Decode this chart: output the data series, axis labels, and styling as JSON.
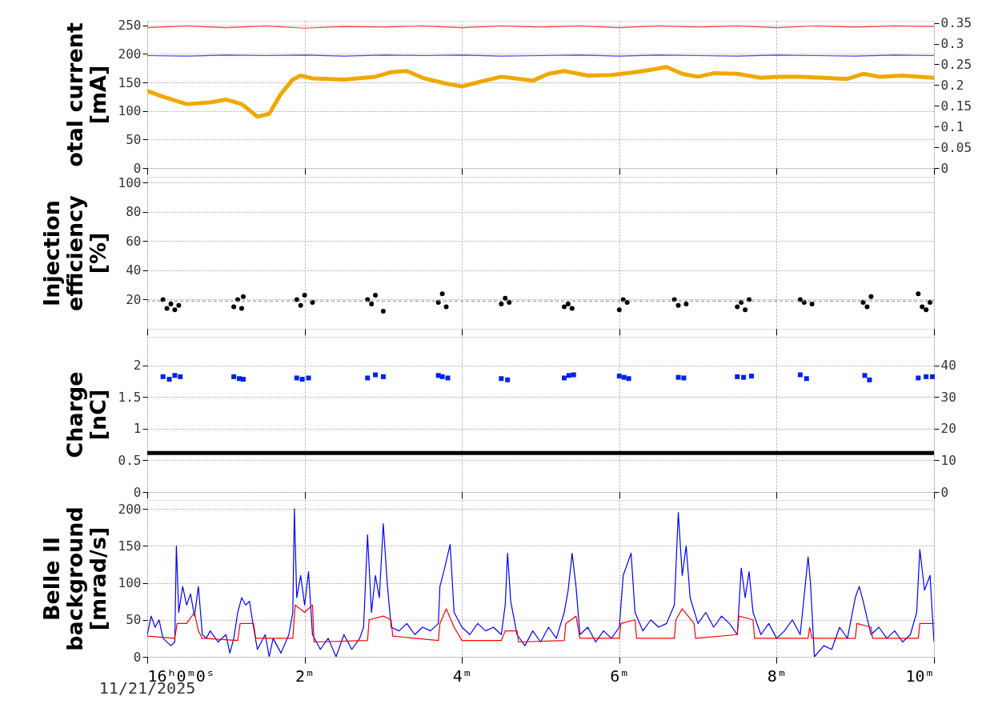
{
  "chart_data": [
    {
      "type": "line",
      "ylabel": "otal current\n[mA]",
      "xlim": [
        0,
        10
      ],
      "xticks": [
        {
          "value": 0,
          "label": null
        },
        {
          "value": 2,
          "label": null
        },
        {
          "value": 4,
          "label": null
        },
        {
          "value": 6,
          "label": null
        },
        {
          "value": 8,
          "label": null
        },
        {
          "value": 10,
          "label": null
        }
      ],
      "ylim": [
        0,
        258
      ],
      "yticks": [
        0,
        50,
        100,
        150,
        200,
        250
      ],
      "y2lim": [
        0,
        0.355
      ],
      "y2ticks": [
        0,
        0.05,
        0.1,
        0.15,
        0.2,
        0.25,
        0.3,
        0.35
      ],
      "grid": true,
      "tick_labels": "y",
      "series": [
        {
          "color": "#f0a800",
          "x": [
            0,
            0.2,
            0.5,
            0.8,
            1.0,
            1.2,
            1.4,
            1.55,
            1.7,
            1.85,
            1.95,
            2.1,
            2.5,
            2.9,
            3.1,
            3.3,
            3.5,
            3.8,
            4.0,
            4.2,
            4.5,
            4.8,
            4.9,
            5.1,
            5.3,
            5.6,
            5.9,
            6.2,
            6.4,
            6.6,
            6.8,
            7.0,
            7.2,
            7.5,
            7.8,
            8.0,
            8.3,
            8.6,
            8.9,
            9.1,
            9.3,
            9.6,
            10
          ],
          "values": [
            135,
            125,
            112,
            115,
            120,
            112,
            90,
            95,
            130,
            155,
            162,
            157,
            155,
            160,
            168,
            170,
            158,
            148,
            143,
            150,
            160,
            155,
            153,
            165,
            170,
            162,
            163,
            168,
            172,
            177,
            165,
            160,
            166,
            165,
            158,
            160,
            160,
            158,
            156,
            165,
            160,
            162,
            158
          ]
        },
        {
          "color": "#ff4040",
          "x": [
            0,
            0.5,
            1,
            1.5,
            2,
            2.5,
            3,
            3.5,
            4,
            4.5,
            5,
            5.5,
            6,
            6.5,
            7,
            7.5,
            8,
            8.5,
            9,
            9.5,
            10
          ],
          "values": [
            246,
            249,
            246,
            249,
            245,
            248,
            247,
            249,
            246,
            249,
            247,
            249,
            246,
            249,
            247,
            249,
            246,
            249,
            247,
            249,
            248
          ]
        },
        {
          "color": "#4040ff",
          "x": [
            0,
            0.5,
            1,
            1.5,
            2,
            2.5,
            3,
            3.5,
            4,
            4.5,
            5,
            5.5,
            6,
            6.5,
            7,
            7.5,
            8,
            8.5,
            9,
            9.5,
            10
          ],
          "values": [
            197,
            196,
            198,
            197,
            198,
            196,
            198,
            197,
            198,
            196,
            197,
            198,
            196,
            198,
            197,
            196,
            198,
            197,
            196,
            198,
            197
          ]
        }
      ]
    },
    {
      "type": "scatter",
      "ylabel": "Injection\nefficiency\n[%]",
      "xlim": [
        0,
        10
      ],
      "xticks": [
        {
          "value": 0,
          "label": null
        },
        {
          "value": 2,
          "label": null
        },
        {
          "value": 4,
          "label": null
        },
        {
          "value": 6,
          "label": null
        },
        {
          "value": 8,
          "label": null
        },
        {
          "value": 10,
          "label": null
        }
      ],
      "ylim": [
        0,
        104
      ],
      "yticks": [
        20,
        40,
        60,
        80,
        100
      ],
      "grid": true,
      "tick_labels": "y",
      "marker": "circle",
      "ref_lines": [
        {
          "axis": "y",
          "value": 19,
          "color": "#888888",
          "line_style": "dashed"
        }
      ],
      "series": [
        {
          "color": "#000000",
          "x": [
            0.2,
            0.25,
            0.3,
            0.35,
            0.4,
            1.1,
            1.15,
            1.2,
            1.22,
            1.9,
            1.95,
            2.0,
            2.1,
            2.8,
            2.85,
            2.9,
            3.0,
            3.7,
            3.75,
            3.8,
            4.5,
            4.55,
            4.6,
            5.3,
            5.35,
            5.4,
            6.0,
            6.05,
            6.1,
            6.7,
            6.75,
            6.85,
            7.5,
            7.55,
            7.6,
            7.65,
            8.3,
            8.35,
            8.45,
            9.1,
            9.15,
            9.2,
            9.8,
            9.85,
            9.9,
            9.95
          ],
          "values": [
            20,
            14,
            17,
            13,
            16,
            15,
            20,
            14,
            22,
            20,
            16,
            23,
            18,
            20,
            17,
            23,
            12,
            18,
            24,
            15,
            17,
            21,
            18,
            15,
            17,
            14,
            13,
            20,
            18,
            20,
            16,
            17,
            15,
            18,
            13,
            20,
            20,
            18,
            17,
            18,
            15,
            22,
            24,
            15,
            13,
            18
          ]
        }
      ]
    },
    {
      "type": "scatter",
      "ylabel": "Charge\n[nC]",
      "xlim": [
        0,
        10
      ],
      "xticks": [
        {
          "value": 0,
          "label": null
        },
        {
          "value": 2,
          "label": null
        },
        {
          "value": 4,
          "label": null
        },
        {
          "value": 6,
          "label": null
        },
        {
          "value": 8,
          "label": null
        },
        {
          "value": 10,
          "label": null
        }
      ],
      "ylim": [
        0,
        2.45
      ],
      "yticks": [
        0,
        0.5,
        1,
        1.5,
        2
      ],
      "y2lim": [
        0,
        49
      ],
      "y2ticks": [
        0,
        10,
        20,
        30,
        40
      ],
      "grid": true,
      "tick_labels": "y",
      "series": [
        {
          "color": "#0022ee",
          "marker": "square",
          "x": [
            0.2,
            0.28,
            0.35,
            0.42,
            1.1,
            1.17,
            1.22,
            1.9,
            1.97,
            2.05,
            2.8,
            2.9,
            3.0,
            3.7,
            3.75,
            3.82,
            4.5,
            4.58,
            5.3,
            5.36,
            5.42,
            6.0,
            6.06,
            6.12,
            6.75,
            6.82,
            7.5,
            7.58,
            7.68,
            8.3,
            8.38,
            9.12,
            9.18,
            9.8,
            9.9,
            9.98
          ],
          "values": [
            1.82,
            1.78,
            1.84,
            1.82,
            1.82,
            1.79,
            1.78,
            1.8,
            1.78,
            1.8,
            1.8,
            1.85,
            1.82,
            1.84,
            1.82,
            1.8,
            1.79,
            1.77,
            1.8,
            1.84,
            1.85,
            1.83,
            1.81,
            1.79,
            1.81,
            1.8,
            1.82,
            1.81,
            1.83,
            1.85,
            1.79,
            1.84,
            1.77,
            1.8,
            1.82,
            1.82
          ]
        },
        {
          "type": "line",
          "axis": "y2",
          "color": "#000000",
          "x": [
            0,
            10
          ],
          "values": [
            12.3,
            12.3
          ]
        }
      ]
    },
    {
      "type": "line",
      "ylabel": "Belle II\nbackground\n[mrad/s]",
      "xlim": [
        0,
        10
      ],
      "xticks": [
        {
          "value": 0,
          "label": "16ʰ0ᵐ0ˢ"
        },
        {
          "value": 2,
          "label": "2ᵐ"
        },
        {
          "value": 4,
          "label": "4ᵐ"
        },
        {
          "value": 6,
          "label": "6ᵐ"
        },
        {
          "value": 8,
          "label": "8ᵐ"
        },
        {
          "value": 10,
          "label": "10ᵐ"
        }
      ],
      "ylim": [
        0,
        212
      ],
      "yticks": [
        0,
        50,
        100,
        150,
        200
      ],
      "grid": true,
      "annotations": [
        "11/21/2025"
      ],
      "series": [
        {
          "color": "#0000ff",
          "x": [
            0,
            0.05,
            0.1,
            0.15,
            0.2,
            0.3,
            0.35,
            0.37,
            0.4,
            0.45,
            0.5,
            0.55,
            0.6,
            0.65,
            0.7,
            0.75,
            0.8,
            0.9,
            1.0,
            1.05,
            1.1,
            1.15,
            1.2,
            1.25,
            1.3,
            1.35,
            1.4,
            1.5,
            1.55,
            1.6,
            1.7,
            1.8,
            1.85,
            1.87,
            1.9,
            1.95,
            2.0,
            2.05,
            2.1,
            2.2,
            2.3,
            2.4,
            2.5,
            2.6,
            2.7,
            2.75,
            2.8,
            2.85,
            2.9,
            2.95,
            3.0,
            3.05,
            3.1,
            3.2,
            3.3,
            3.4,
            3.5,
            3.6,
            3.7,
            3.72,
            3.78,
            3.85,
            3.9,
            4.0,
            4.1,
            4.2,
            4.3,
            4.4,
            4.5,
            4.55,
            4.58,
            4.62,
            4.7,
            4.8,
            4.9,
            5.0,
            5.1,
            5.2,
            5.3,
            5.35,
            5.4,
            5.45,
            5.5,
            5.6,
            5.7,
            5.8,
            5.9,
            6.0,
            6.05,
            6.1,
            6.15,
            6.2,
            6.3,
            6.4,
            6.5,
            6.6,
            6.7,
            6.75,
            6.8,
            6.85,
            6.9,
            7.0,
            7.1,
            7.2,
            7.3,
            7.4,
            7.5,
            7.55,
            7.6,
            7.65,
            7.7,
            7.8,
            7.9,
            8.0,
            8.1,
            8.2,
            8.3,
            8.4,
            8.43,
            8.48,
            8.6,
            8.7,
            8.8,
            8.9,
            9.0,
            9.05,
            9.1,
            9.2,
            9.3,
            9.4,
            9.5,
            9.6,
            9.7,
            9.78,
            9.82,
            9.88,
            9.95,
            10
          ],
          "values": [
            30,
            55,
            40,
            50,
            25,
            15,
            20,
            150,
            60,
            95,
            70,
            85,
            55,
            95,
            30,
            25,
            35,
            20,
            30,
            5,
            25,
            60,
            80,
            70,
            75,
            40,
            10,
            30,
            0,
            25,
            5,
            30,
            60,
            200,
            80,
            110,
            70,
            115,
            30,
            10,
            25,
            0,
            30,
            10,
            25,
            40,
            165,
            60,
            110,
            80,
            180,
            100,
            40,
            35,
            45,
            30,
            40,
            35,
            45,
            95,
            120,
            152,
            60,
            40,
            30,
            45,
            35,
            40,
            30,
            70,
            140,
            75,
            30,
            15,
            35,
            20,
            40,
            25,
            60,
            90,
            140,
            95,
            30,
            40,
            20,
            35,
            25,
            40,
            110,
            125,
            140,
            60,
            35,
            50,
            40,
            45,
            70,
            195,
            110,
            150,
            80,
            45,
            60,
            40,
            55,
            45,
            30,
            120,
            80,
            115,
            60,
            30,
            45,
            25,
            35,
            50,
            30,
            135,
            100,
            0,
            15,
            10,
            40,
            25,
            80,
            95,
            75,
            30,
            40,
            25,
            35,
            20,
            30,
            60,
            145,
            90,
            110,
            20
          ]
        },
        {
          "color": "#ff0000",
          "x": [
            0,
            0.35,
            0.38,
            0.5,
            0.6,
            0.65,
            0.7,
            1.15,
            1.18,
            1.35,
            1.38,
            1.85,
            1.88,
            2.0,
            2.1,
            2.12,
            2.8,
            2.82,
            3.0,
            3.1,
            3.12,
            3.7,
            3.72,
            3.8,
            3.9,
            4.0,
            4.5,
            4.55,
            4.7,
            4.72,
            5.3,
            5.32,
            5.45,
            5.5,
            6.0,
            6.02,
            6.2,
            6.22,
            6.7,
            6.72,
            6.8,
            6.95,
            6.97,
            7.5,
            7.52,
            7.7,
            7.72,
            8.4,
            8.42,
            8.45,
            9.0,
            9.02,
            9.2,
            9.22,
            9.8,
            9.82,
            10
          ],
          "values": [
            28,
            25,
            45,
            45,
            60,
            35,
            25,
            22,
            45,
            45,
            25,
            25,
            70,
            60,
            70,
            20,
            22,
            50,
            55,
            50,
            28,
            22,
            45,
            65,
            40,
            22,
            22,
            35,
            35,
            20,
            22,
            45,
            55,
            25,
            25,
            45,
            50,
            25,
            25,
            50,
            65,
            45,
            25,
            30,
            55,
            50,
            25,
            25,
            40,
            25,
            25,
            45,
            40,
            25,
            25,
            45,
            45
          ]
        }
      ]
    }
  ]
}
